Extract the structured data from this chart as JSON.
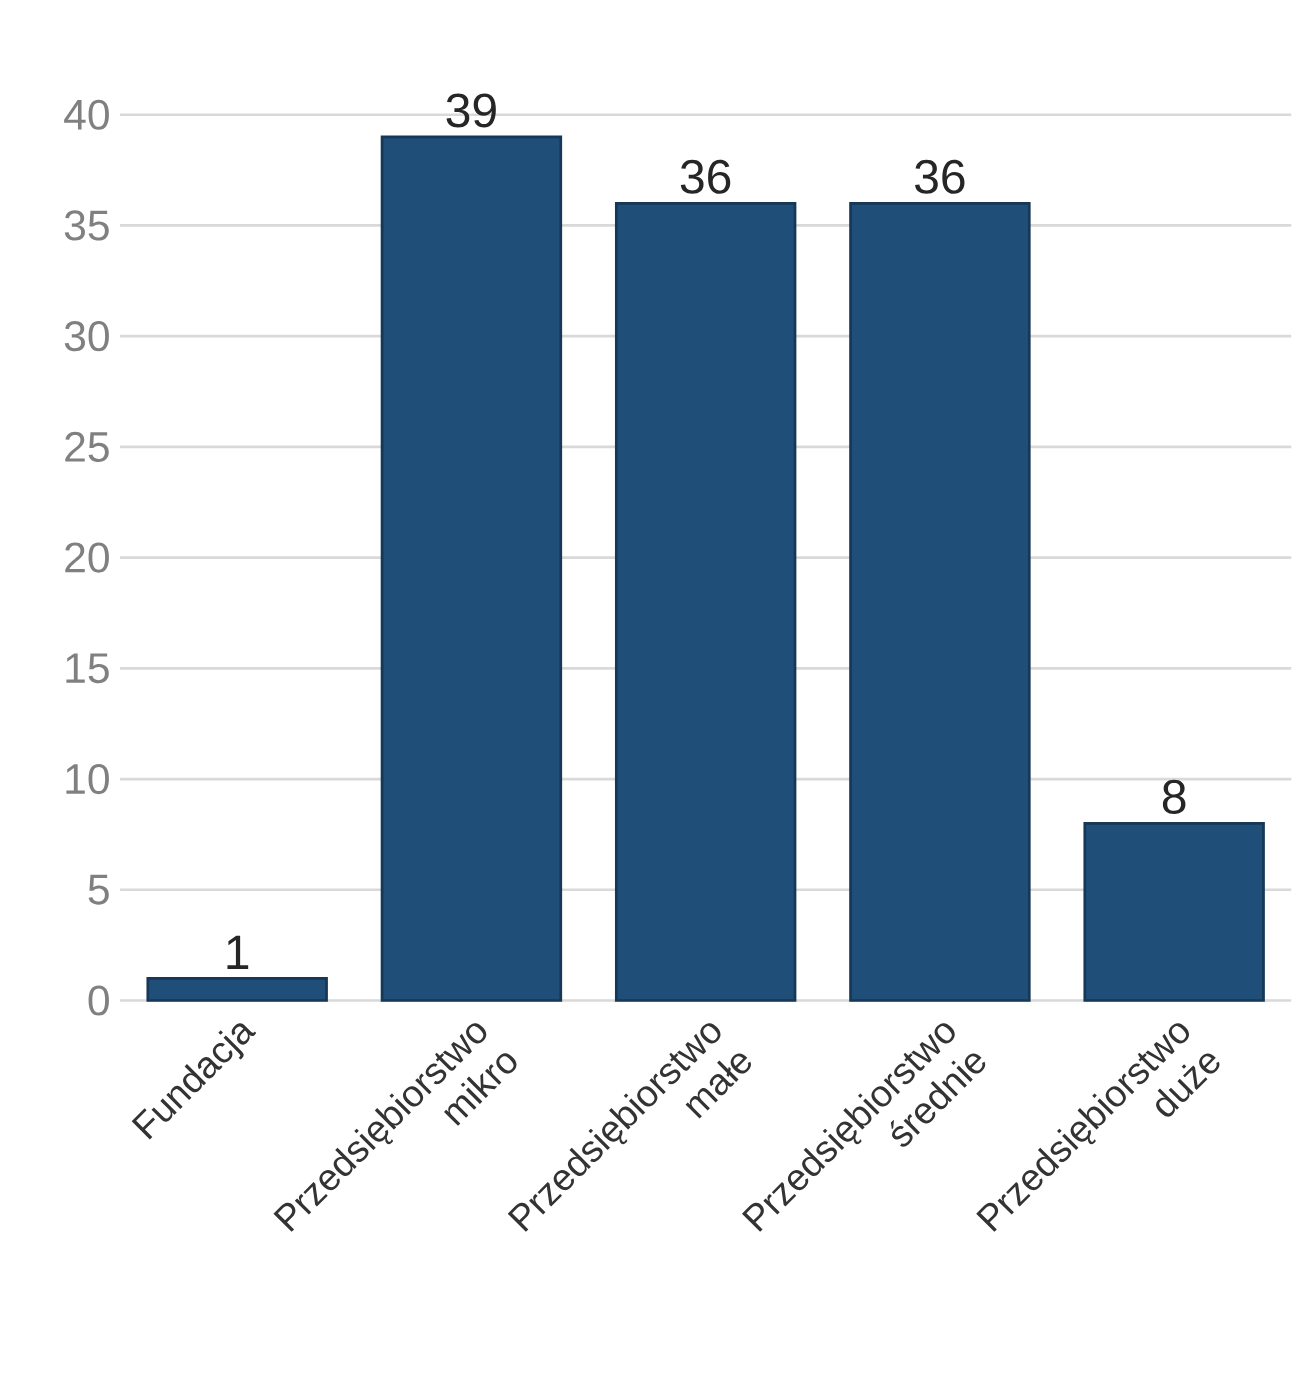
{
  "chart_data": {
    "type": "bar",
    "categories": [
      "Fundacja",
      "Przedsiębiorstwo mikro",
      "Przedsiębiorstwo małe",
      "Przedsiębiorstwo średnie",
      "Przedsiębiorstwo duże"
    ],
    "values": [
      1,
      39,
      36,
      36,
      8
    ],
    "color": "#1f4e79",
    "ylim": [
      0,
      40
    ],
    "yticks": [
      0,
      5,
      10,
      15,
      20,
      25,
      30,
      35,
      40
    ],
    "grid": "y",
    "data_labels": true
  }
}
